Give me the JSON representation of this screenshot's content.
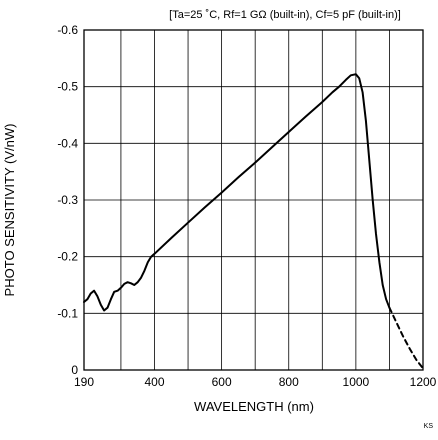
{
  "chart_data": {
    "type": "line",
    "conditions": "[Ta=25 ˚C, Rf=1 GΩ (built-in), Cf=5 pF (built-in)]",
    "xlabel": "WAVELENGTH (nm)",
    "ylabel": "PHOTO SENSITIVITY (V/nW)",
    "code": "KS",
    "xlim": [
      190,
      1200
    ],
    "ylim": [
      0,
      -0.6
    ],
    "x_ticks": [
      190,
      400,
      600,
      800,
      1000,
      1200
    ],
    "x_tick_labels": [
      "190",
      "400",
      "600",
      "800",
      "1000",
      "1200"
    ],
    "y_ticks": [
      0,
      -0.1,
      -0.2,
      -0.3,
      -0.4,
      -0.5,
      -0.6
    ],
    "y_tick_labels": [
      "0",
      "-0.1",
      "-0.2",
      "-0.3",
      "-0.4",
      "-0.5",
      "-0.6"
    ],
    "x_gridlines": [
      190,
      300,
      400,
      500,
      600,
      700,
      800,
      900,
      1000,
      1100,
      1200
    ],
    "y_gridlines": [
      0,
      -0.1,
      -0.2,
      -0.3,
      -0.4,
      -0.5,
      -0.6
    ],
    "grid": true,
    "series": [
      {
        "style": "solid",
        "x": [
          190,
          200,
          210,
          220,
          230,
          240,
          250,
          260,
          270,
          280,
          290,
          300,
          310,
          320,
          330,
          340,
          350,
          360,
          370,
          380,
          390,
          400,
          450,
          500,
          550,
          600,
          650,
          700,
          750,
          800,
          850,
          900,
          930,
          950,
          970,
          985,
          1000,
          1010,
          1020,
          1030,
          1040,
          1050,
          1060,
          1070,
          1080,
          1090,
          1100
        ],
        "y": [
          -0.12,
          -0.125,
          -0.135,
          -0.14,
          -0.13,
          -0.115,
          -0.105,
          -0.11,
          -0.125,
          -0.138,
          -0.14,
          -0.145,
          -0.152,
          -0.155,
          -0.153,
          -0.15,
          -0.155,
          -0.163,
          -0.175,
          -0.19,
          -0.2,
          -0.205,
          -0.233,
          -0.26,
          -0.287,
          -0.313,
          -0.34,
          -0.366,
          -0.393,
          -0.42,
          -0.447,
          -0.473,
          -0.49,
          -0.5,
          -0.512,
          -0.52,
          -0.522,
          -0.515,
          -0.49,
          -0.44,
          -0.37,
          -0.3,
          -0.24,
          -0.19,
          -0.15,
          -0.125,
          -0.11
        ]
      },
      {
        "style": "dashed",
        "x": [
          1100,
          1120,
          1140,
          1160,
          1180,
          1200
        ],
        "y": [
          -0.11,
          -0.085,
          -0.06,
          -0.038,
          -0.018,
          -0.003
        ]
      }
    ]
  }
}
